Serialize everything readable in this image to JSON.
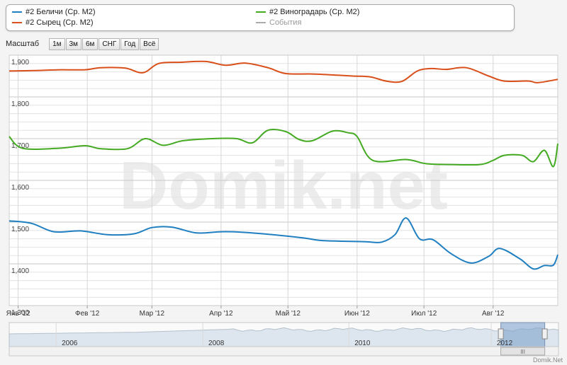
{
  "legend": [
    {
      "label": "#2 Беличи (Ср. М2)",
      "color": "#1f7fc0"
    },
    {
      "label": "#2 Виноградарь (Ср. М2)",
      "color": "#44aa22"
    },
    {
      "label": "#2 Сырец (Ср. М2)",
      "color": "#d94f1a"
    },
    {
      "label": "События",
      "color": "#aaaaaa"
    }
  ],
  "zoom": {
    "label": "Масштаб",
    "buttons": [
      "1м",
      "3м",
      "6м",
      "СНГ",
      "Год",
      "Всё"
    ]
  },
  "watermark": "Domik.net",
  "credit": "Domik.Net",
  "navigator": {
    "years": [
      "2006",
      "2008",
      "2010",
      "2012"
    ],
    "handle": "III",
    "selection": [
      0.895,
      0.975
    ]
  },
  "chart_data": {
    "type": "line",
    "x_tick_labels": [
      "Янв '12",
      "Фев '12",
      "Мар '12",
      "Апр '12",
      "Май '12",
      "Июн '12",
      "Июл '12",
      "Авг '12"
    ],
    "x_tick_dates": [
      "2012-01-01",
      "2012-02-01",
      "2012-03-01",
      "2012-04-01",
      "2012-05-01",
      "2012-06-01",
      "2012-07-01",
      "2012-08-01"
    ],
    "x_range": [
      "2011-12-28",
      "2012-08-30"
    ],
    "ylim": [
      1300,
      1900
    ],
    "y_tick_values": [
      1300,
      1400,
      1500,
      1600,
      1700,
      1800,
      1900
    ],
    "y_tick_labels": [
      "1,300",
      "1,400",
      "1,500",
      "1,600",
      "1,700",
      "1,800",
      "1,900"
    ],
    "grid": true,
    "series": [
      {
        "name": "#2 Сырец (Ср. М2)",
        "color": "#d94f1a",
        "points": [
          [
            "2011-12-28",
            1862
          ],
          [
            "2012-01-08",
            1863
          ],
          [
            "2012-01-20",
            1865
          ],
          [
            "2012-01-31",
            1865
          ],
          [
            "2012-02-07",
            1870
          ],
          [
            "2012-02-18",
            1869
          ],
          [
            "2012-02-26",
            1858
          ],
          [
            "2012-03-04",
            1880
          ],
          [
            "2012-03-14",
            1883
          ],
          [
            "2012-03-25",
            1885
          ],
          [
            "2012-04-03",
            1876
          ],
          [
            "2012-04-12",
            1881
          ],
          [
            "2012-04-22",
            1870
          ],
          [
            "2012-04-30",
            1856
          ],
          [
            "2012-05-12",
            1855
          ],
          [
            "2012-05-23",
            1852
          ],
          [
            "2012-05-30",
            1850
          ],
          [
            "2012-06-07",
            1848
          ],
          [
            "2012-06-14",
            1838
          ],
          [
            "2012-06-21",
            1837
          ],
          [
            "2012-06-28",
            1862
          ],
          [
            "2012-07-04",
            1868
          ],
          [
            "2012-07-11",
            1866
          ],
          [
            "2012-07-20",
            1870
          ],
          [
            "2012-07-30",
            1850
          ],
          [
            "2012-08-06",
            1838
          ],
          [
            "2012-08-17",
            1838
          ],
          [
            "2012-08-21",
            1834
          ],
          [
            "2012-08-30",
            1842
          ]
        ]
      },
      {
        "name": "#2 Виноградарь (Ср. М2)",
        "color": "#44aa22",
        "points": [
          [
            "2011-12-28",
            1705
          ],
          [
            "2012-01-03",
            1677
          ],
          [
            "2012-01-19",
            1677
          ],
          [
            "2012-01-31",
            1683
          ],
          [
            "2012-02-07",
            1676
          ],
          [
            "2012-02-19",
            1676
          ],
          [
            "2012-02-27",
            1700
          ],
          [
            "2012-03-06",
            1684
          ],
          [
            "2012-03-15",
            1695
          ],
          [
            "2012-03-28",
            1700
          ],
          [
            "2012-04-08",
            1700
          ],
          [
            "2012-04-15",
            1690
          ],
          [
            "2012-04-22",
            1720
          ],
          [
            "2012-04-30",
            1717
          ],
          [
            "2012-05-06",
            1698
          ],
          [
            "2012-05-12",
            1695
          ],
          [
            "2012-05-21",
            1718
          ],
          [
            "2012-05-28",
            1714
          ],
          [
            "2012-06-01",
            1705
          ],
          [
            "2012-06-08",
            1648
          ],
          [
            "2012-06-23",
            1650
          ],
          [
            "2012-07-02",
            1640
          ],
          [
            "2012-07-12",
            1638
          ],
          [
            "2012-07-26",
            1638
          ],
          [
            "2012-08-01",
            1648
          ],
          [
            "2012-08-06",
            1660
          ],
          [
            "2012-08-14",
            1660
          ],
          [
            "2012-08-19",
            1645
          ],
          [
            "2012-08-24",
            1672
          ],
          [
            "2012-08-28",
            1633
          ],
          [
            "2012-08-30",
            1688
          ]
        ]
      },
      {
        "name": "#2 Беличи (Ср. М2)",
        "color": "#1f7fc0",
        "points": [
          [
            "2011-12-28",
            1503
          ],
          [
            "2012-01-07",
            1497
          ],
          [
            "2012-01-17",
            1477
          ],
          [
            "2012-01-29",
            1479
          ],
          [
            "2012-02-10",
            1470
          ],
          [
            "2012-02-22",
            1472
          ],
          [
            "2012-03-01",
            1487
          ],
          [
            "2012-03-10",
            1488
          ],
          [
            "2012-03-21",
            1474
          ],
          [
            "2012-04-01",
            1477
          ],
          [
            "2012-04-10",
            1476
          ],
          [
            "2012-04-22",
            1471
          ],
          [
            "2012-05-08",
            1462
          ],
          [
            "2012-05-16",
            1456
          ],
          [
            "2012-05-27",
            1454
          ],
          [
            "2012-06-05",
            1453
          ],
          [
            "2012-06-12",
            1452
          ],
          [
            "2012-06-18",
            1470
          ],
          [
            "2012-06-23",
            1510
          ],
          [
            "2012-06-29",
            1460
          ],
          [
            "2012-07-05",
            1458
          ],
          [
            "2012-07-13",
            1425
          ],
          [
            "2012-07-22",
            1402
          ],
          [
            "2012-07-30",
            1418
          ],
          [
            "2012-08-04",
            1437
          ],
          [
            "2012-08-13",
            1412
          ],
          [
            "2012-08-19",
            1388
          ],
          [
            "2012-08-24",
            1396
          ],
          [
            "2012-08-28",
            1397
          ],
          [
            "2012-08-30",
            1422
          ]
        ]
      }
    ]
  }
}
